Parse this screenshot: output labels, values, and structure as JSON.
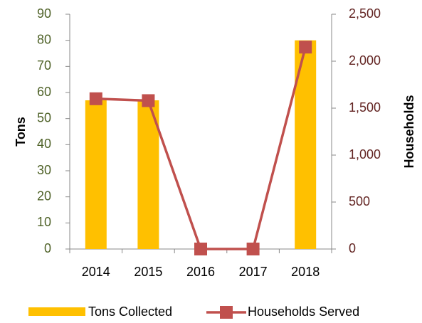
{
  "chart_data": {
    "type": "bar-line",
    "categories": [
      "2014",
      "2015",
      "2016",
      "2017",
      "2018"
    ],
    "series": [
      {
        "name": "Tons Collected",
        "type": "bar",
        "color": "#ffc000",
        "values": [
          57,
          57,
          0,
          0,
          80
        ]
      },
      {
        "name": "Households Served",
        "type": "line",
        "axis": "y2",
        "color": "#c0504d",
        "values": [
          1600,
          1580,
          0,
          0,
          2150
        ]
      }
    ],
    "ylabel": "Tons",
    "y2label": "Households",
    "ylim": [
      0,
      90
    ],
    "yticks": [
      0,
      10,
      20,
      30,
      40,
      50,
      60,
      70,
      80,
      90
    ],
    "y2lim": [
      0,
      2500
    ],
    "y2ticks": [
      0,
      {
        "value": 500,
        "label": "500"
      },
      {
        "value": 1000,
        "label": "1,000"
      },
      {
        "value": 1500,
        "label": "1,500"
      },
      {
        "value": 2000,
        "label": "2,000"
      },
      {
        "value": 2500,
        "label": "2,500"
      }
    ],
    "ytick_color": "#4f6228",
    "y2tick_color": "#632523",
    "grid": false,
    "legend": "bottom"
  }
}
